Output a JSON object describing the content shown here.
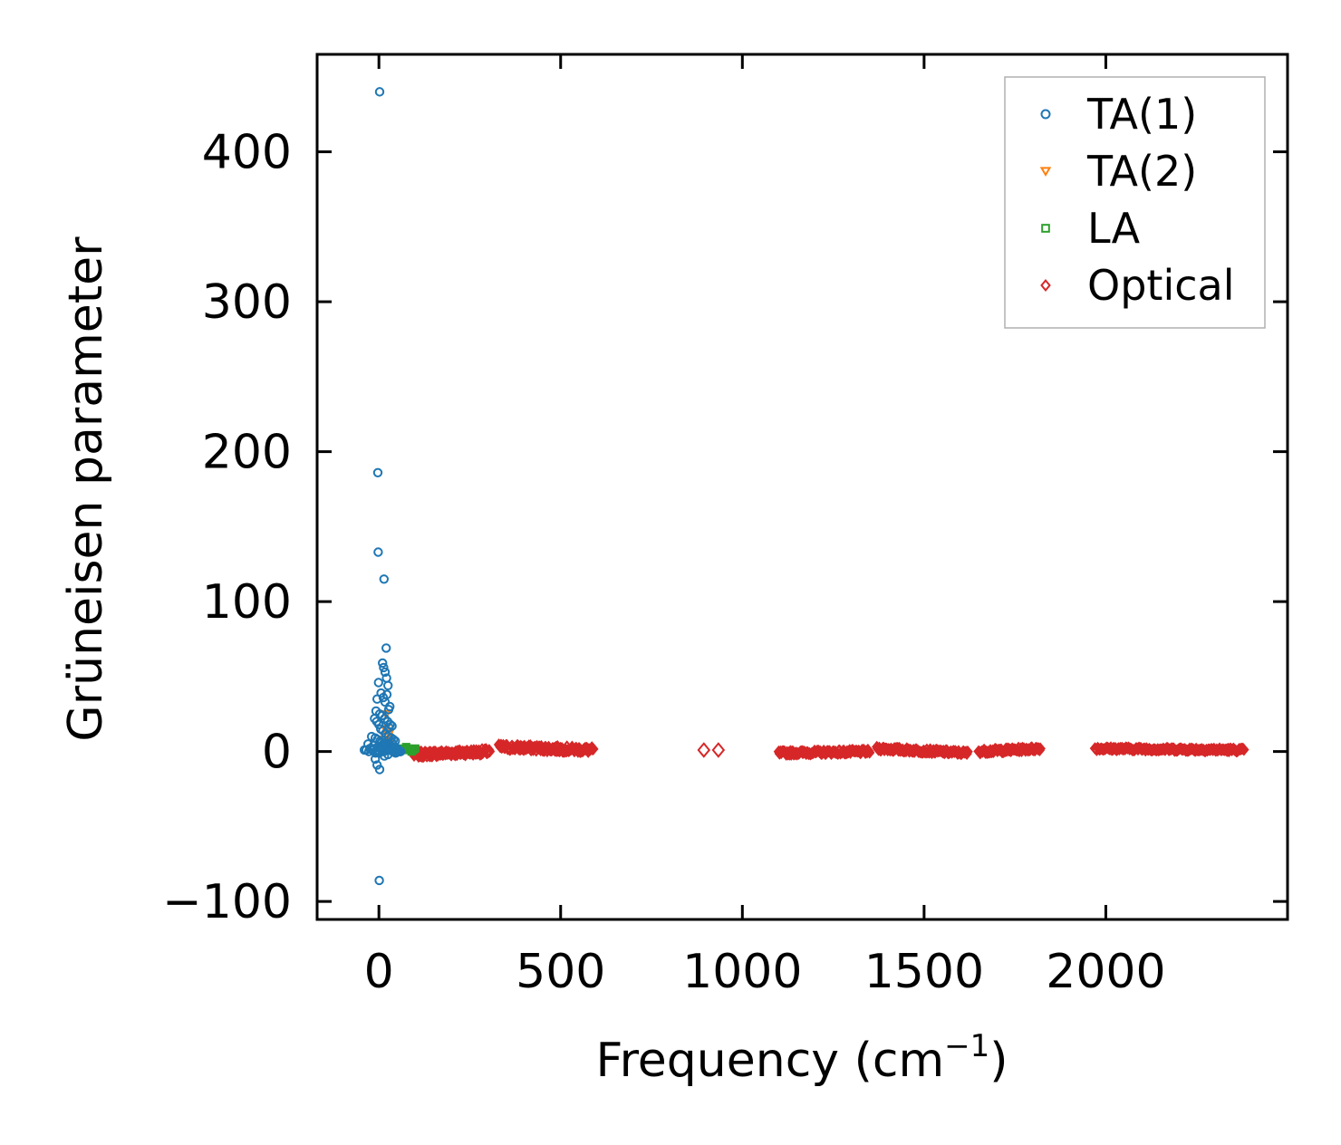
{
  "chart_data": {
    "type": "scatter",
    "xlabel": "Frequency (cm",
    "xlabel_sup": "−1",
    "xlabel_end": ")",
    "ylabel": "Grüneisen parameter",
    "xlim": [
      -170,
      2500
    ],
    "ylim": [
      -112,
      465
    ],
    "xticks": [
      0,
      500,
      1000,
      1500,
      2000
    ],
    "xtick_labels": [
      "0",
      "500",
      "1000",
      "1500",
      "2000"
    ],
    "yticks": [
      -100,
      0,
      100,
      200,
      300,
      400
    ],
    "ytick_labels": [
      "−100",
      "0",
      "100",
      "200",
      "300",
      "400"
    ],
    "legend_position": "top-right",
    "series": [
      {
        "name": "TA(1)",
        "marker": "circle",
        "color": "#1f77b4",
        "x": [
          2,
          -3,
          -2,
          14,
          20,
          10,
          13,
          17,
          21,
          25,
          -1,
          -5,
          6,
          12,
          17,
          22,
          30,
          27,
          -8,
          2,
          9,
          16,
          24,
          31,
          36,
          28,
          -12,
          -6,
          0,
          5,
          11,
          18,
          26,
          34,
          40,
          45,
          -20,
          -10,
          -4,
          3,
          8,
          15,
          22,
          29,
          37,
          44,
          50,
          -30,
          -15,
          -2,
          4,
          12,
          19,
          27,
          35,
          42,
          48,
          55,
          60,
          -25,
          -18,
          -7,
          1,
          7,
          14,
          21,
          33,
          41,
          52,
          58,
          -35,
          -28,
          -12,
          -3,
          6,
          13,
          20,
          26,
          32,
          38,
          46,
          53,
          -40,
          -22,
          -9,
          0,
          9,
          18,
          24,
          39,
          -5,
          -10,
          2,
          1,
          15,
          25,
          35,
          45
        ],
        "y": [
          440,
          186,
          133,
          115,
          69,
          59,
          56,
          53,
          49,
          44,
          46,
          35,
          39,
          36,
          33,
          38,
          30,
          28,
          27,
          25,
          24,
          22,
          20,
          18,
          17,
          16,
          22,
          20,
          18,
          15,
          14,
          12,
          10,
          9,
          8,
          7,
          10,
          9,
          8,
          7,
          6,
          5,
          4,
          4,
          3,
          3,
          2,
          5,
          4,
          3,
          2,
          2,
          1,
          1,
          1,
          0,
          0,
          0,
          0,
          2,
          1,
          0,
          -1,
          1,
          0,
          2,
          1,
          0,
          1,
          0,
          1,
          0,
          2,
          1,
          3,
          4,
          3,
          2,
          1,
          0,
          -1,
          0,
          1,
          2,
          -1,
          0,
          3,
          2,
          5,
          3,
          -9,
          -5,
          -12,
          -86,
          -3,
          -2,
          6,
          1
        ]
      },
      {
        "name": "TA(2)",
        "marker": "triangle-down",
        "color": "#ff7f0e",
        "x": [
          5,
          10,
          15,
          20,
          25,
          30,
          35,
          40,
          45,
          50,
          55,
          60,
          18,
          22,
          28
        ],
        "y": [
          3,
          8,
          2,
          25,
          10,
          5,
          3,
          2,
          1,
          2,
          1,
          0,
          15,
          6,
          12
        ]
      },
      {
        "name": "LA",
        "marker": "square",
        "color": "#2ca02c",
        "x": [
          60,
          65,
          70,
          75,
          80,
          85,
          90,
          95,
          100
        ],
        "y": [
          1,
          2,
          1,
          3,
          2,
          1,
          0,
          1,
          2
        ]
      },
      {
        "name": "Optical",
        "marker": "diamond",
        "color": "#d62728",
        "segments": [
          {
            "x0": 95,
            "x1": 305,
            "y_start": -2,
            "y_end": 0,
            "noise": 1.8,
            "count": 120
          },
          {
            "x0": 330,
            "x1": 590,
            "y_start": 3,
            "y_end": 1,
            "noise": 1.8,
            "count": 130
          },
          {
            "x0": 1100,
            "x1": 1350,
            "y_start": -1,
            "y_end": 0,
            "noise": 1.2,
            "count": 110
          },
          {
            "x0": 1370,
            "x1": 1620,
            "y_start": 2,
            "y_end": -1,
            "noise": 1.2,
            "count": 110
          },
          {
            "x0": 1650,
            "x1": 1820,
            "y_start": 0,
            "y_end": 2,
            "noise": 1.2,
            "count": 80
          },
          {
            "x0": 1970,
            "x1": 2380,
            "y_start": 2,
            "y_end": 1,
            "noise": 1.0,
            "count": 160
          }
        ],
        "x": [
          894,
          934
        ],
        "y": [
          1,
          1
        ]
      }
    ]
  }
}
